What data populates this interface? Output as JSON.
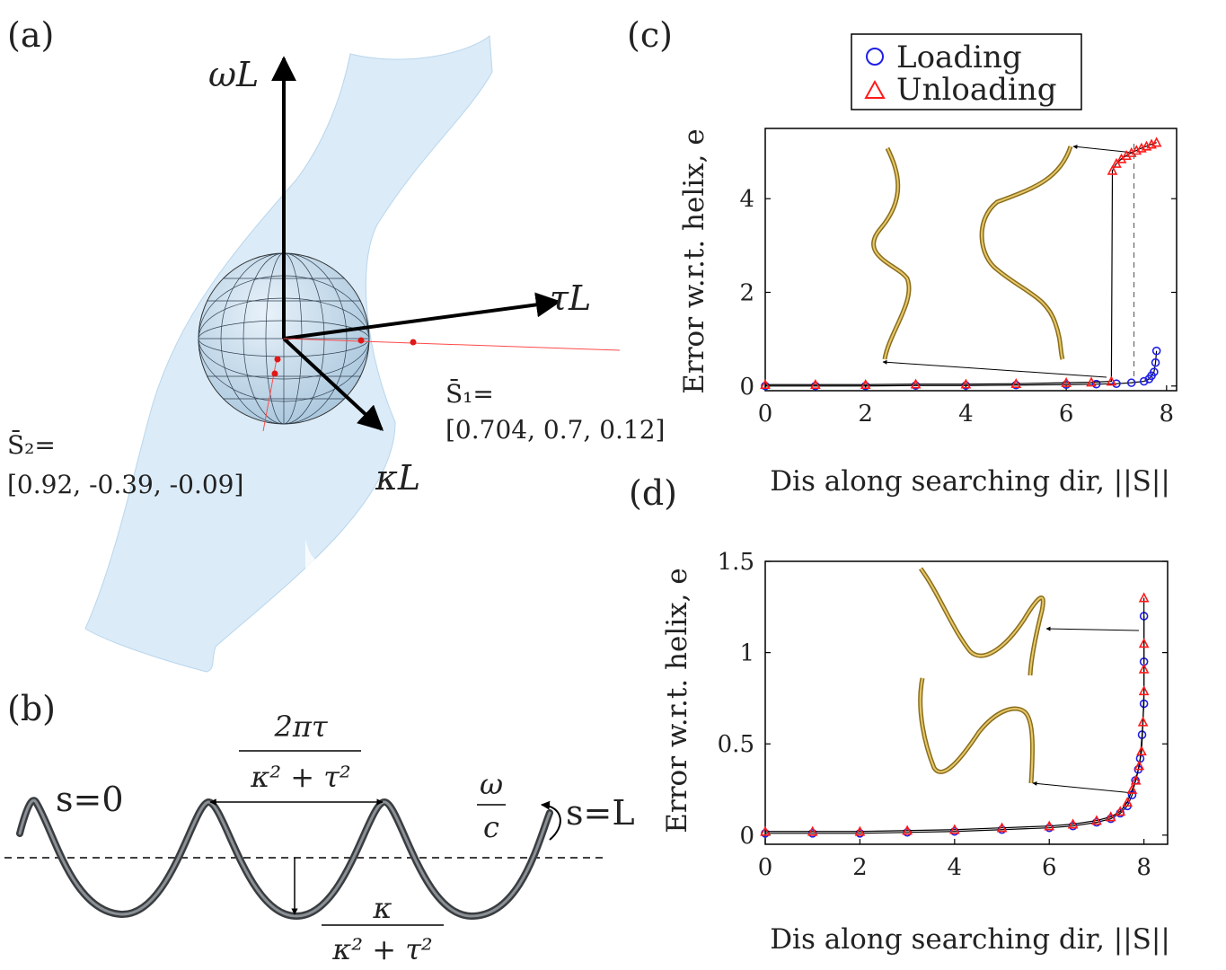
{
  "panels": {
    "a": {
      "label": "(a)",
      "axes": {
        "omega": "ωL",
        "tau": "τL",
        "kappa": "κL"
      },
      "s1_label": "S̄₁=",
      "s1_value": "[0.704, 0.7, 0.12]",
      "s2_label": "S̄₂=",
      "s2_value": "[0.92, -0.39, -0.09]"
    },
    "b": {
      "label": "(b)",
      "start": "s=0",
      "end": "s=L",
      "wavelength_num": "2πτ",
      "wavelength_den": "κ² + τ²",
      "amp_num": "κ",
      "amp_den": "κ² + τ²",
      "rate_num": "ω",
      "rate_den": "c"
    },
    "c": {
      "label": "(c)"
    },
    "d": {
      "label": "(d)"
    }
  },
  "legend": {
    "loading": "Loading",
    "unloading": "Unloading"
  },
  "colors": {
    "loading": "#1f1fe6",
    "unloading": "#ff1a1a",
    "surface": "#cfe4f5",
    "rod": "#c9a646"
  },
  "chart_data": [
    {
      "panel": "c",
      "type": "scatter",
      "xlabel": "Dis along searching dir, ||S||",
      "ylabel": "Error w.r.t. helix, e",
      "xlim": [
        0,
        8.2
      ],
      "ylim": [
        -0.1,
        5.5
      ],
      "xticks": [
        0,
        2,
        4,
        6,
        8
      ],
      "yticks": [
        0,
        2,
        4
      ],
      "grid": false,
      "legend_position": "top",
      "series": [
        {
          "name": "Loading",
          "marker": "circle",
          "x": [
            0,
            1,
            2,
            3,
            4,
            5,
            6,
            6.6,
            7,
            7.3,
            7.55,
            7.65,
            7.7,
            7.75,
            7.78,
            7.8
          ],
          "y": [
            0,
            0,
            0,
            0.01,
            0.01,
            0.02,
            0.03,
            0.04,
            0.05,
            0.07,
            0.1,
            0.15,
            0.22,
            0.3,
            0.5,
            0.75
          ]
        },
        {
          "name": "Unloading",
          "marker": "triangle",
          "x": [
            0,
            1,
            2,
            3,
            4,
            5,
            6,
            6.5,
            6.9,
            6.92,
            7.0,
            7.1,
            7.2,
            7.3,
            7.4,
            7.5,
            7.6,
            7.7,
            7.8
          ],
          "y": [
            0.03,
            0.03,
            0.03,
            0.04,
            0.04,
            0.05,
            0.07,
            0.08,
            0.1,
            4.6,
            4.75,
            4.85,
            4.92,
            4.98,
            5.03,
            5.08,
            5.12,
            5.16,
            5.2
          ]
        }
      ]
    },
    {
      "panel": "d",
      "type": "scatter",
      "xlabel": "Dis along searching dir, ||S||",
      "ylabel": "Error w.r.t. helix, e",
      "xlim": [
        0,
        8.5
      ],
      "ylim": [
        -0.05,
        1.5
      ],
      "xticks": [
        0,
        2,
        4,
        6,
        8
      ],
      "yticks": [
        0,
        0.5,
        1,
        1.5
      ],
      "grid": false,
      "series": [
        {
          "name": "Loading",
          "marker": "circle",
          "x": [
            0,
            1,
            2,
            3,
            4,
            5,
            6,
            6.5,
            7,
            7.3,
            7.5,
            7.65,
            7.75,
            7.82,
            7.88,
            7.92,
            7.96,
            8.0,
            8.0,
            8.0
          ],
          "y": [
            0.01,
            0.01,
            0.01,
            0.015,
            0.02,
            0.03,
            0.04,
            0.05,
            0.07,
            0.09,
            0.12,
            0.16,
            0.22,
            0.3,
            0.36,
            0.42,
            0.55,
            0.72,
            0.95,
            1.2
          ]
        },
        {
          "name": "Unloading",
          "marker": "triangle",
          "x": [
            0,
            1,
            2,
            3,
            4,
            5,
            6,
            6.5,
            7,
            7.3,
            7.5,
            7.65,
            7.75,
            7.83,
            7.9,
            7.95,
            7.98,
            8.0,
            8.0,
            8.0,
            8.0
          ],
          "y": [
            0.02,
            0.02,
            0.02,
            0.025,
            0.03,
            0.04,
            0.05,
            0.06,
            0.08,
            0.1,
            0.13,
            0.18,
            0.25,
            0.3,
            0.38,
            0.46,
            0.62,
            0.79,
            0.91,
            1.05,
            1.3
          ]
        }
      ]
    }
  ]
}
